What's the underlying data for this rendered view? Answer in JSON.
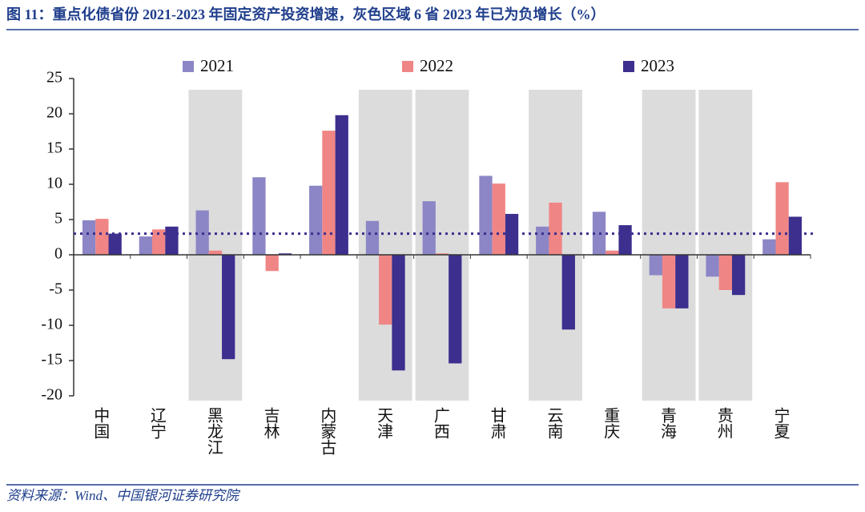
{
  "chart_data": {
    "type": "bar",
    "title": "图 11：重点化债省份 2021-2023 年固定资产投资增速，灰色区域 6 省 2023 年已为负增长（%）",
    "source": "资料来源：Wind、中国银河证券研究院",
    "categories": [
      "中国",
      "辽宁",
      "黑龙江",
      "吉林",
      "内蒙古",
      "天津",
      "广西",
      "甘肃",
      "云南",
      "重庆",
      "青海",
      "贵州",
      "宁夏"
    ],
    "highlight": [
      false,
      false,
      true,
      false,
      false,
      true,
      true,
      false,
      true,
      false,
      true,
      true,
      false
    ],
    "series": [
      {
        "name": "2021",
        "color": "#8c86c6",
        "values": [
          4.9,
          2.6,
          6.3,
          11.0,
          9.8,
          4.8,
          7.6,
          11.2,
          4.0,
          6.1,
          -2.9,
          -3.1,
          2.2
        ]
      },
      {
        "name": "2022",
        "color": "#f08585",
        "values": [
          5.1,
          3.6,
          0.6,
          -2.3,
          17.6,
          -9.9,
          0.2,
          10.1,
          7.4,
          0.6,
          -7.6,
          -5.0,
          10.3
        ]
      },
      {
        "name": "2023",
        "color": "#3c2f8e",
        "values": [
          3.0,
          4.0,
          -14.8,
          0.2,
          19.8,
          -16.4,
          -15.4,
          5.8,
          -10.6,
          4.2,
          -7.6,
          -5.7,
          5.4
        ]
      }
    ],
    "reference_line": 3.0,
    "reference_color": "#3c2f8e",
    "ylim": [
      -20,
      25
    ],
    "yticks": [
      -20,
      -15,
      -10,
      -5,
      0,
      5,
      10,
      15,
      20,
      25
    ]
  }
}
